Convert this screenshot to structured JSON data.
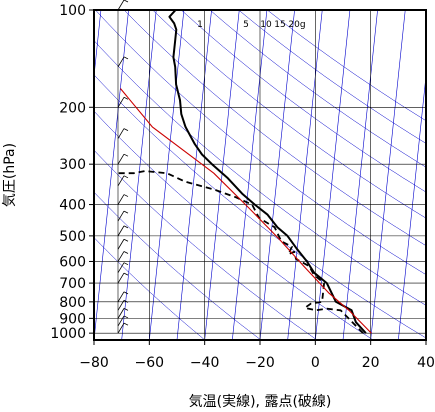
{
  "chart_data": {
    "type": "line",
    "xlabel": "気温(実線), 露点(破線)",
    "ylabel": "気圧(hPa)",
    "xlim": [
      -80,
      40
    ],
    "ylim_pressure": [
      1050,
      100
    ],
    "y_scale": "log",
    "x_ticks": [
      "−80",
      "−60",
      "−40",
      "−20",
      "0",
      "20",
      "40"
    ],
    "x_tick_values": [
      -80,
      -60,
      -40,
      -20,
      0,
      20,
      40
    ],
    "y_ticks": [
      "100",
      "200",
      "300",
      "400",
      "500",
      "600",
      "700",
      "800",
      "900",
      "1000"
    ],
    "y_tick_values": [
      100,
      200,
      300,
      400,
      500,
      600,
      700,
      800,
      900,
      1000
    ],
    "grid": true,
    "mixing_ratio_labels": [
      "1",
      "5",
      "10",
      "15",
      "20g"
    ],
    "colors": {
      "frame": "#000000",
      "isotherm": "#0000cc",
      "isobar": "#000000",
      "temperature": "#000000",
      "dewpoint": "#000000",
      "parcel": "#cc0000",
      "wind": "#000000"
    },
    "series": [
      {
        "values": [
          [
            18,
            1000
          ],
          [
            14,
            925
          ],
          [
            12,
            850
          ],
          [
            6,
            800
          ],
          [
            2,
            700
          ],
          [
            -3,
            650
          ],
          [
            -6,
            600
          ],
          [
            -10,
            550
          ],
          [
            -14,
            500
          ],
          [
            -18,
            470
          ],
          [
            -22,
            430
          ],
          [
            -27,
            400
          ],
          [
            -32,
            370
          ],
          [
            -38,
            330
          ],
          [
            -44,
            300
          ],
          [
            -48,
            280
          ],
          [
            -51,
            260
          ],
          [
            -55,
            230
          ],
          [
            -57,
            210
          ],
          [
            -58,
            190
          ],
          [
            -60,
            170
          ],
          [
            -61,
            150
          ],
          [
            -62,
            140
          ],
          [
            -62,
            125
          ],
          [
            -62,
            115
          ],
          [
            -63,
            110
          ],
          [
            -65,
            105
          ],
          [
            -63,
            100
          ]
        ]
      },
      {
        "values": [
          [
            17,
            1000
          ],
          [
            13,
            930
          ],
          [
            8,
            850
          ],
          [
            3,
            840
          ],
          [
            -1,
            850
          ],
          [
            -5,
            835
          ],
          [
            -3,
            810
          ],
          [
            1,
            800
          ],
          [
            1,
            700
          ],
          [
            -3,
            660
          ],
          [
            -5,
            620
          ],
          [
            -10,
            590
          ],
          [
            -11,
            560
          ],
          [
            -13,
            570
          ],
          [
            -12,
            540
          ],
          [
            -16,
            520
          ],
          [
            -19,
            470
          ],
          [
            -21,
            460
          ],
          [
            -25,
            440
          ],
          [
            -28,
            400
          ],
          [
            -34,
            380
          ],
          [
            -42,
            360
          ],
          [
            -53,
            340
          ],
          [
            -60,
            320
          ],
          [
            -68,
            315
          ],
          [
            -72,
            320
          ],
          [
            -78,
            320
          ]
        ]
      },
      {
        "values": [
          [
            20,
            1000
          ],
          [
            16,
            930
          ],
          [
            11,
            850
          ],
          [
            3,
            750
          ],
          [
            -7,
            620
          ],
          [
            -17,
            510
          ],
          [
            -29,
            410
          ],
          [
            -43,
            320
          ],
          [
            -67,
            230
          ],
          [
            -80,
            175
          ]
        ]
      }
    ],
    "wind_profile_pressures": [
      100,
      150,
      200,
      250,
      300,
      350,
      400,
      450,
      500,
      550,
      600,
      650,
      700,
      800,
      850,
      900,
      950,
      1000
    ]
  }
}
